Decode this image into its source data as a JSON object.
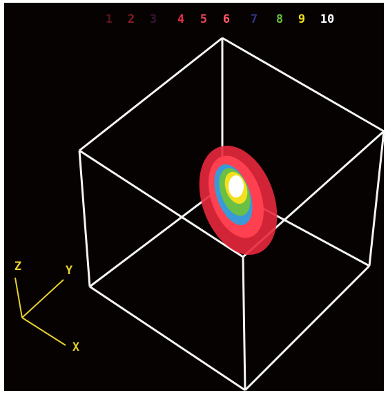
{
  "legend": {
    "labels": [
      "1",
      "2",
      "3",
      "4",
      "5",
      "6",
      "7",
      "8",
      "9",
      "10"
    ],
    "colors": [
      "#5a1418",
      "#8a1c24",
      "#3a1434",
      "#e0304a",
      "#e84454",
      "#ff5866",
      "#34347e",
      "#6ac044",
      "#f2e020",
      "#ffffff"
    ]
  },
  "axes": {
    "z": "Z",
    "y": "Y",
    "x": "X"
  }
}
